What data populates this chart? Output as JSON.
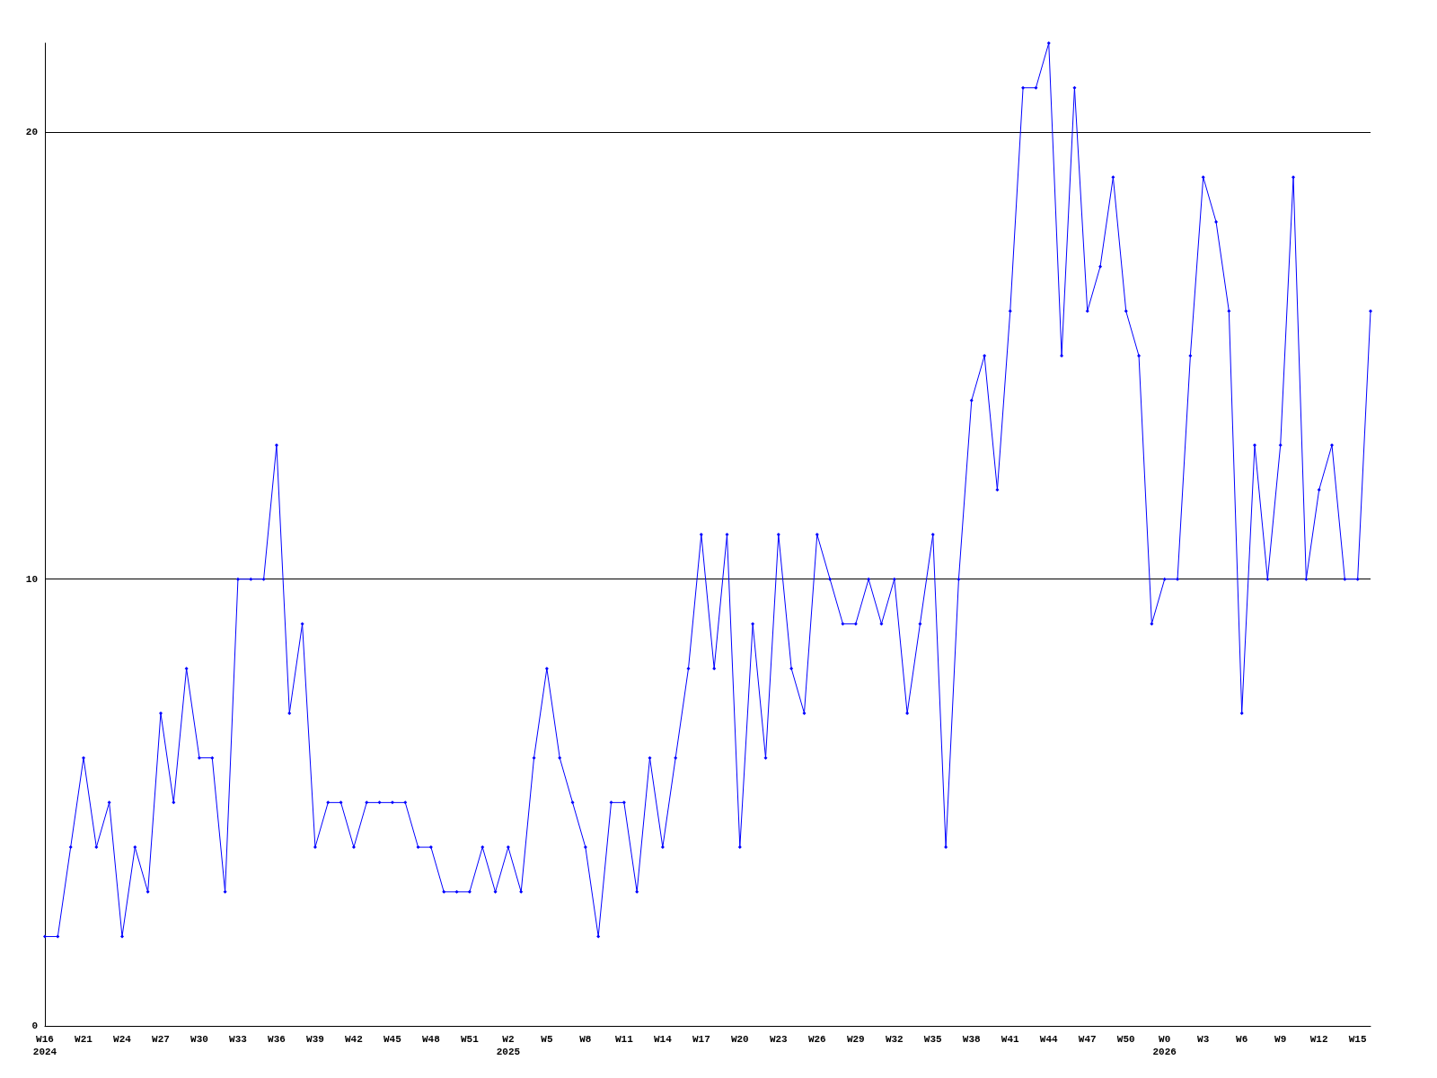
{
  "chart_data": {
    "type": "line",
    "categories": [
      "W16\n2024",
      null,
      null,
      "W21",
      null,
      null,
      "W24",
      null,
      null,
      "W27",
      null,
      null,
      "W30",
      null,
      null,
      "W33",
      null,
      null,
      "W36",
      null,
      null,
      "W39",
      null,
      null,
      "W42",
      null,
      null,
      "W45",
      null,
      null,
      "W48",
      null,
      null,
      "W51",
      null,
      null,
      "W2\n2025",
      null,
      null,
      "W5",
      null,
      null,
      "W8",
      null,
      null,
      "W11",
      null,
      null,
      "W14",
      null,
      null,
      "W17",
      null,
      null,
      "W20",
      null,
      null,
      "W23",
      null,
      null,
      "W26",
      null,
      null,
      "W29",
      null,
      null,
      "W32",
      null,
      null,
      "W35",
      null,
      null,
      "W38",
      null,
      null,
      "W41",
      null,
      null,
      "W44",
      null,
      null,
      "W47",
      null,
      null,
      "W50",
      null,
      null,
      "W0\n2026",
      null,
      null,
      "W3",
      null,
      null,
      "W6",
      null,
      null,
      "W9",
      null,
      null,
      "W12",
      null,
      null,
      "W15",
      null
    ],
    "values": [
      2,
      2,
      4,
      6,
      4,
      5,
      2,
      4,
      3,
      7,
      5,
      8,
      6,
      6,
      3,
      10,
      10,
      10,
      13,
      7,
      9,
      4,
      5,
      5,
      4,
      5,
      5,
      5,
      5,
      4,
      4,
      3,
      3,
      3,
      4,
      3,
      4,
      3,
      6,
      8,
      6,
      5,
      4,
      2,
      5,
      5,
      3,
      6,
      4,
      6,
      8,
      11,
      8,
      11,
      4,
      9,
      6,
      11,
      8,
      7,
      11,
      10,
      9,
      9,
      10,
      9,
      10,
      7,
      9,
      11,
      4,
      10,
      14,
      15,
      12,
      16,
      21,
      21,
      22,
      15,
      21,
      16,
      17,
      19,
      16,
      15,
      9,
      10,
      10,
      15,
      19,
      18,
      16,
      7,
      13,
      10,
      13,
      19,
      10,
      12,
      13,
      10,
      10,
      16
    ],
    "color": "#0000ff",
    "ylim": [
      0,
      22
    ],
    "yticks": [
      0,
      10,
      20
    ],
    "grid": "y",
    "marker": "diamond",
    "line_style": "solid"
  }
}
